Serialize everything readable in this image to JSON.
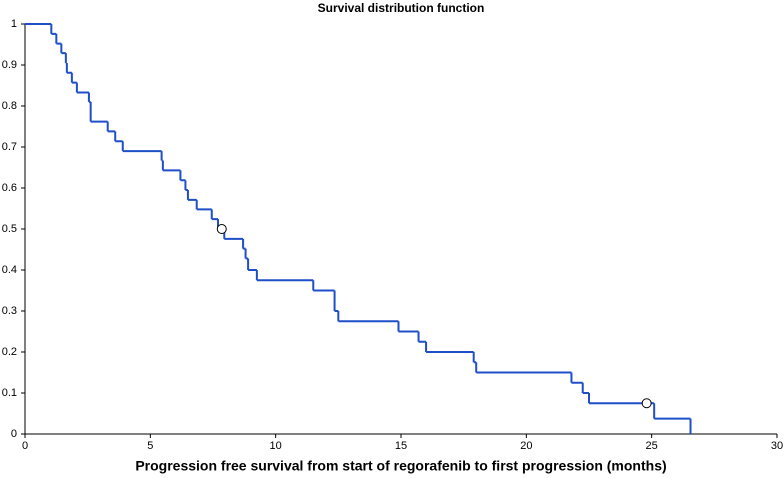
{
  "chart_data": {
    "type": "step",
    "title": "Survival distribution function",
    "x_label": "Progression free survival from start of regorafenib to first progression (months)",
    "series": [
      {
        "color": "#1f4fc8",
        "x": [
          0,
          1.05,
          1.25,
          1.45,
          1.63,
          1.67,
          1.87,
          2.07,
          2.55,
          2.62,
          3.3,
          3.6,
          3.9,
          5.45,
          5.5,
          6.2,
          6.4,
          6.5,
          6.85,
          7.45,
          7.7,
          7.95,
          8.7,
          8.8,
          8.9,
          9.25,
          11.5,
          12.35,
          12.5,
          14.9,
          15.7,
          16.0,
          17.9,
          18.0,
          21.8,
          22.25,
          22.5,
          25.1,
          26.55
        ],
        "values": [
          1,
          0.976,
          0.952,
          0.929,
          0.905,
          0.881,
          0.857,
          0.833,
          0.81,
          0.762,
          0.738,
          0.714,
          0.69,
          0.667,
          0.643,
          0.619,
          0.595,
          0.571,
          0.548,
          0.524,
          0.5,
          0.476,
          0.452,
          0.428,
          0.4,
          0.375,
          0.35,
          0.3,
          0.275,
          0.25,
          0.225,
          0.2,
          0.175,
          0.15,
          0.125,
          0.1,
          0.075,
          0.0375,
          0
        ]
      },
      {
        "type": "censored",
        "x": [
          7.85,
          24.8
        ],
        "values": [
          0.5,
          0.075
        ]
      }
    ],
    "xlim": [
      0,
      30
    ],
    "ylim": [
      0,
      1
    ],
    "xticks": [
      0,
      5,
      10,
      15,
      20,
      25,
      30
    ],
    "yticks": [
      0,
      0.1,
      0.2,
      0.3,
      0.4,
      0.5,
      0.6,
      0.7,
      0.8,
      0.9,
      1
    ]
  }
}
